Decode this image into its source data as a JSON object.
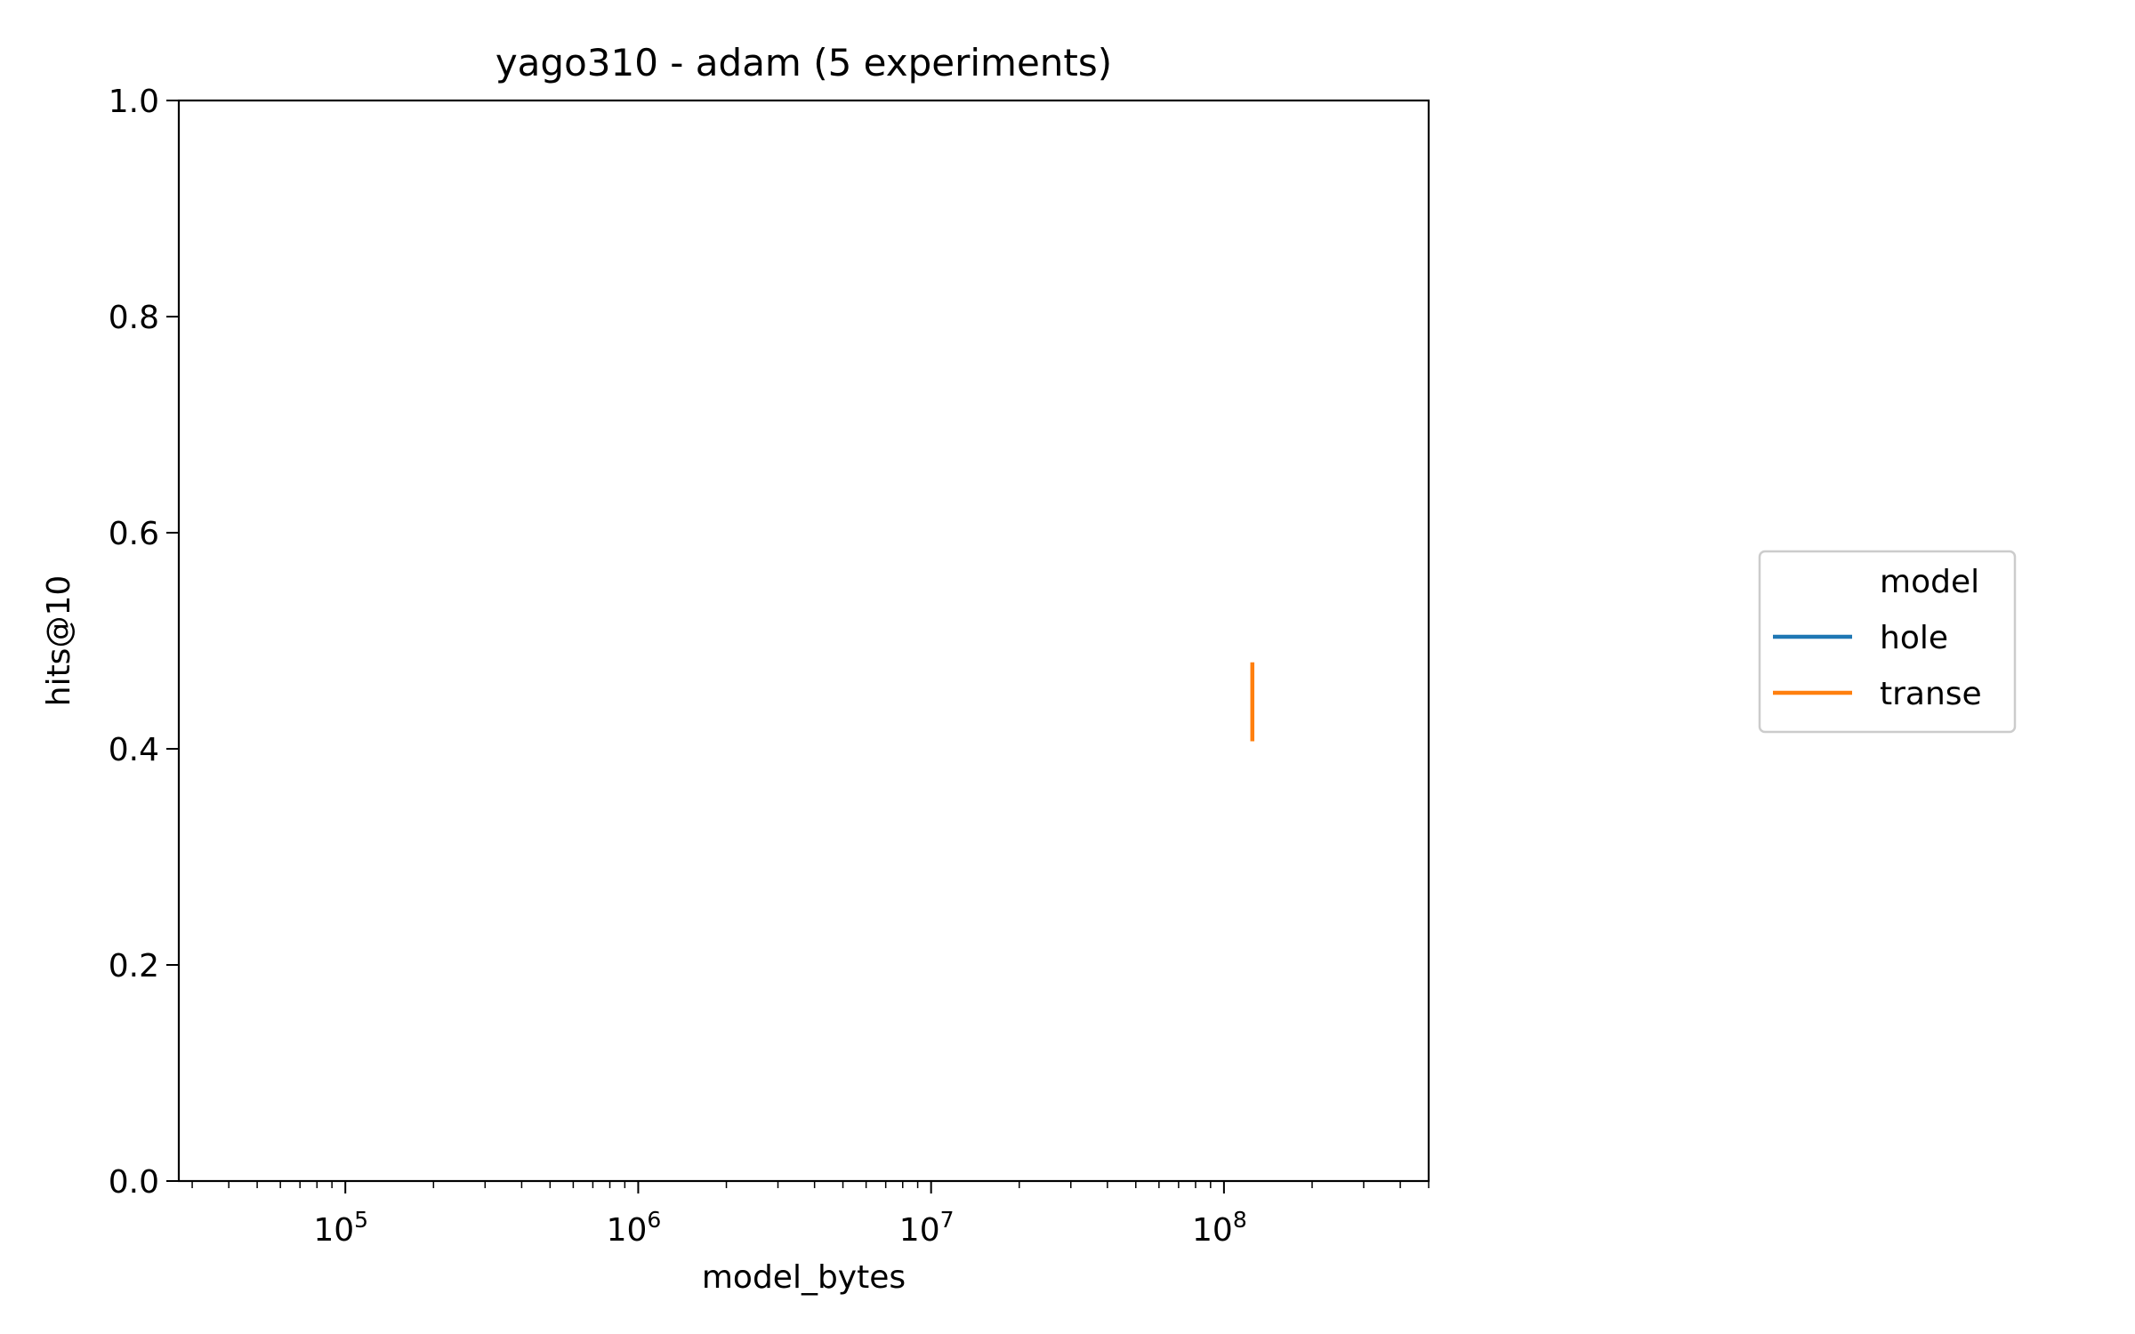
{
  "chart_data": {
    "type": "line",
    "title": "yago310 - adam  (5 experiments)",
    "xlabel": "model_bytes",
    "ylabel": "hits@10",
    "xscale": "log",
    "xlim": [
      27000,
      500000000
    ],
    "ylim": [
      0.0,
      1.0
    ],
    "x_ticks": [
      100000,
      1000000,
      10000000,
      100000000
    ],
    "x_tick_labels": [
      {
        "base": "10",
        "exp": "5"
      },
      {
        "base": "10",
        "exp": "6"
      },
      {
        "base": "10",
        "exp": "7"
      },
      {
        "base": "10",
        "exp": "8"
      }
    ],
    "y_ticks": [
      0.0,
      0.2,
      0.4,
      0.6,
      0.8,
      1.0
    ],
    "y_tick_labels": [
      "0.0",
      "0.2",
      "0.4",
      "0.6",
      "0.8",
      "1.0"
    ],
    "grid": false,
    "legend": {
      "title": "model",
      "placement": "right"
    },
    "series": [
      {
        "name": "hole",
        "color": "#1f77b4",
        "points": []
      },
      {
        "name": "transe",
        "color": "#ff7f0e",
        "points": [
          {
            "x": 125000000,
            "y_low": 0.407,
            "y_high": 0.48
          }
        ]
      }
    ]
  }
}
